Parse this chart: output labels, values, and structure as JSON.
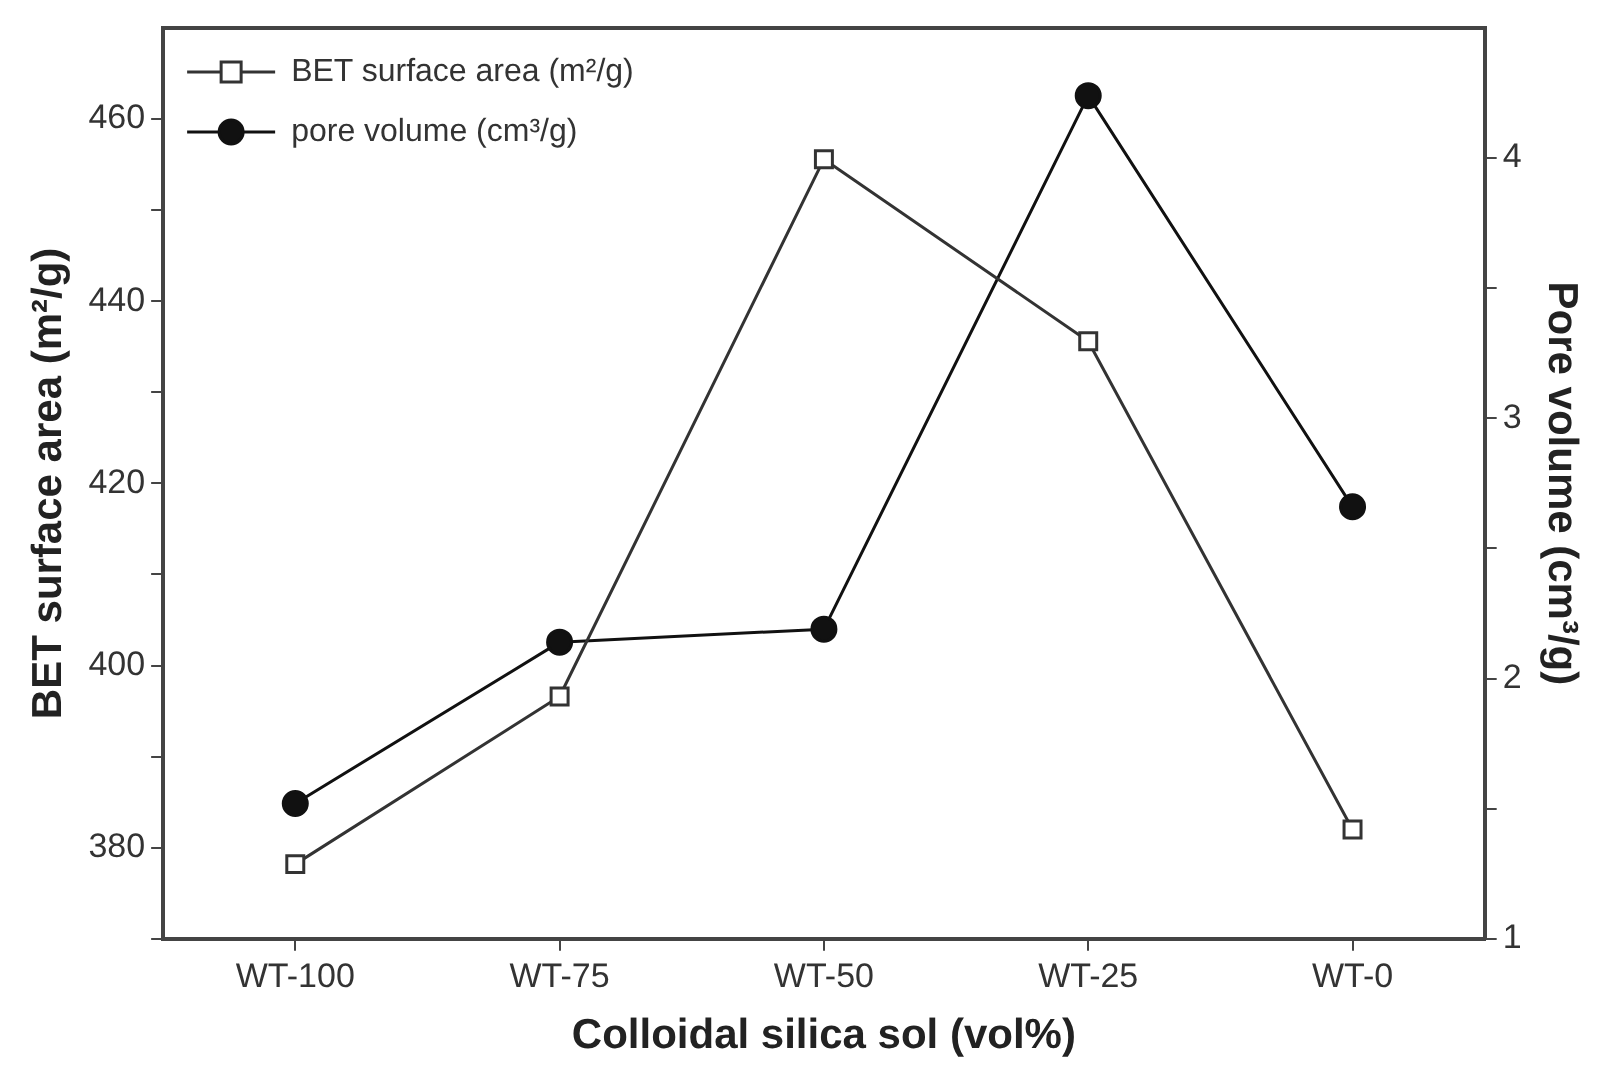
{
  "chart_data": {
    "type": "line",
    "xlabel": "Colloidal silica sol (vol%)",
    "ylabel": "BET surface area (m²/g)",
    "y2label": "Pore volume (cm³/g)",
    "categories": [
      "WT-100",
      "WT-75",
      "WT-50",
      "WT-25",
      "WT-0"
    ],
    "series": [
      {
        "name": "BET surface area (m²/g)",
        "color": "#333333",
        "marker": "square",
        "values": [
          378.2,
          396.6,
          455.6,
          435.6,
          382
        ]
      },
      {
        "name": "pore volume (cm³/g)",
        "color": "#111111",
        "marker": "circle",
        "axis": "y2",
        "values": [
          1.52,
          2.14,
          2.19,
          4.24,
          2.66
        ]
      }
    ],
    "ylim": [
      370,
      470
    ],
    "yticks": [
      {
        "value": 370,
        "label": null
      },
      380,
      {
        "value": 390,
        "label": null
      },
      400,
      {
        "value": 410,
        "label": null
      },
      420,
      {
        "value": 430,
        "label": null
      },
      440,
      {
        "value": 450,
        "label": null
      },
      460
    ],
    "y2lim": [
      1,
      4.5
    ],
    "y2ticks": [
      1,
      {
        "value": 1.5,
        "label": null
      },
      2,
      {
        "value": 2.5,
        "label": null
      },
      3,
      {
        "value": 3.5,
        "label": null
      },
      4
    ],
    "grid": false,
    "legend": "top left",
    "line_style": "solid"
  }
}
